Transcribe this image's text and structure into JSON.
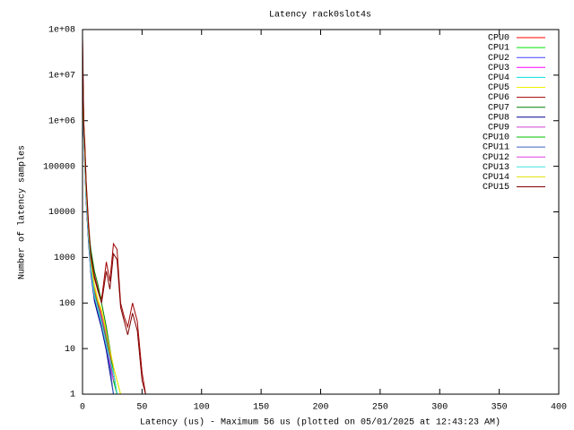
{
  "chart_data": {
    "type": "line",
    "title": "Latency rack0slot4s",
    "x_label": "Latency (us) - Maximum 56 us (plotted on 05/01/2025 at 12:43:23 AM)",
    "y_label": "Number of latency samples",
    "log_y": true,
    "legend": "top-right",
    "xlim": [
      0,
      400
    ],
    "xticks": [
      0,
      50,
      100,
      150,
      200,
      250,
      300,
      350,
      400
    ],
    "ylim": [
      1,
      100000000
    ],
    "yticks": [
      1,
      10,
      100,
      1000,
      10000,
      100000,
      {
        "value": 1000000,
        "label": "1e+06"
      },
      {
        "value": 10000000,
        "label": "1e+07"
      },
      {
        "value": 100000000,
        "label": "1e+08"
      }
    ],
    "x": [
      0,
      1,
      2,
      3,
      5,
      7,
      10,
      13,
      16,
      20,
      23,
      26,
      29,
      32,
      35,
      38,
      42,
      46,
      50,
      53,
      56
    ],
    "series": [
      {
        "name": "CPU0",
        "color": "#ff0000",
        "values": [
          30000000,
          800000,
          150000,
          30000,
          4000,
          800,
          200,
          100,
          60,
          20,
          8,
          3,
          1,
          null,
          null,
          null,
          null,
          null,
          null,
          null,
          null
        ]
      },
      {
        "name": "CPU1",
        "color": "#00e000",
        "values": [
          20000000,
          600000,
          120000,
          25000,
          3000,
          600,
          150,
          80,
          40,
          15,
          5,
          2,
          1,
          null,
          null,
          null,
          null,
          null,
          null,
          null,
          null
        ]
      },
      {
        "name": "CPU2",
        "color": "#4040ff",
        "values": [
          10000000,
          500000,
          100000,
          20000,
          2500,
          500,
          120,
          60,
          30,
          10,
          4,
          2,
          null,
          null,
          null,
          null,
          null,
          null,
          null,
          null,
          null
        ]
      },
      {
        "name": "CPU3",
        "color": "#ff00ff",
        "values": [
          15000000,
          700000,
          130000,
          28000,
          3500,
          700,
          180,
          90,
          50,
          18,
          6,
          2,
          1,
          null,
          null,
          null,
          null,
          null,
          null,
          null,
          null
        ]
      },
      {
        "name": "CPU4",
        "color": "#00e0e0",
        "values": [
          12000000,
          550000,
          110000,
          22000,
          2800,
          550,
          140,
          70,
          35,
          12,
          5,
          3,
          1,
          1,
          null,
          null,
          null,
          null,
          null,
          null,
          null
        ]
      },
      {
        "name": "CPU5",
        "color": "#f0f000",
        "values": [
          25000000,
          900000,
          180000,
          35000,
          4500,
          900,
          250,
          120,
          70,
          25,
          10,
          4,
          2,
          1,
          1,
          null,
          null,
          null,
          null,
          null,
          null
        ]
      },
      {
        "name": "CPU6",
        "color": "#a00000",
        "values": [
          80000000,
          1000000,
          300000,
          50000,
          6000,
          1200,
          400,
          200,
          120,
          800,
          300,
          2000,
          1500,
          100,
          50,
          30,
          100,
          40,
          3,
          1,
          1
        ]
      },
      {
        "name": "CPU7",
        "color": "#008000",
        "values": [
          18000000,
          650000,
          140000,
          30000,
          4000,
          1500,
          500,
          250,
          100,
          30,
          10,
          3,
          1,
          null,
          null,
          null,
          null,
          null,
          null,
          null,
          null
        ]
      },
      {
        "name": "CPU8",
        "color": "#000090",
        "values": [
          9000000,
          450000,
          90000,
          18000,
          2200,
          450,
          110,
          55,
          28,
          9,
          3,
          1,
          null,
          null,
          null,
          null,
          null,
          null,
          null,
          null,
          null
        ]
      },
      {
        "name": "CPU9",
        "color": "#d040d0",
        "values": [
          14000000,
          600000,
          120000,
          24000,
          3000,
          650,
          160,
          85,
          45,
          14,
          5,
          2,
          null,
          null,
          null,
          null,
          null,
          null,
          null,
          null,
          null
        ]
      },
      {
        "name": "CPU10",
        "color": "#00c000",
        "values": [
          16000000,
          620000,
          125000,
          26000,
          3200,
          620,
          170,
          85,
          42,
          16,
          6,
          2,
          1,
          null,
          null,
          null,
          null,
          null,
          null,
          null,
          null
        ]
      },
      {
        "name": "CPU11",
        "color": "#4060c0",
        "values": [
          11000000,
          520000,
          105000,
          21000,
          2600,
          520,
          130,
          65,
          32,
          11,
          4,
          1,
          null,
          null,
          null,
          null,
          null,
          null,
          null,
          null,
          null
        ]
      },
      {
        "name": "CPU12",
        "color": "#e040e0",
        "values": [
          13000000,
          580000,
          115000,
          23000,
          2900,
          580,
          150,
          75,
          38,
          13,
          5,
          2,
          null,
          null,
          null,
          null,
          null,
          null,
          null,
          null,
          null
        ]
      },
      {
        "name": "CPU13",
        "color": "#40e0e0",
        "values": [
          12500000,
          560000,
          112000,
          22500,
          2850,
          560,
          145,
          72,
          36,
          12,
          6,
          3,
          1,
          null,
          null,
          null,
          null,
          null,
          null,
          null,
          null
        ]
      },
      {
        "name": "CPU14",
        "color": "#e0e000",
        "values": [
          22000000,
          850000,
          170000,
          33000,
          4200,
          850,
          230,
          110,
          65,
          22,
          9,
          4,
          2,
          1,
          null,
          null,
          null,
          null,
          null,
          null,
          null
        ]
      },
      {
        "name": "CPU15",
        "color": "#800000",
        "values": [
          60000000,
          900000,
          250000,
          45000,
          5000,
          1000,
          350,
          180,
          100,
          500,
          200,
          1200,
          900,
          80,
          40,
          20,
          60,
          25,
          2,
          1,
          null
        ]
      }
    ]
  }
}
